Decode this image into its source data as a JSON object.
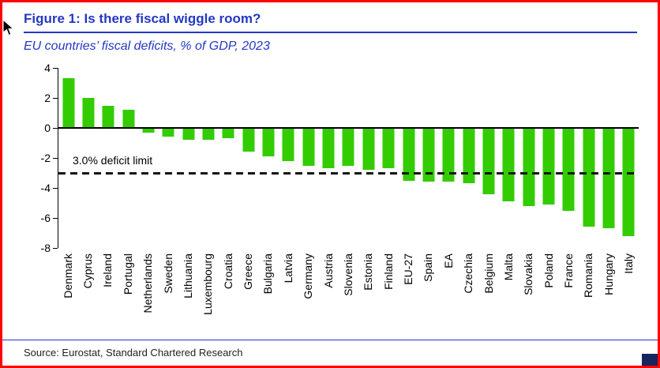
{
  "colors": {
    "bar": "#33CC00",
    "accent_blue": "#2438C3",
    "border_red": "#FF0000",
    "corner_square": "#16255E",
    "axis_black": "#000000"
  },
  "chart_data": {
    "type": "bar",
    "title": "Figure 1: Is there fiscal wiggle room?",
    "subtitle": "EU countries’ fiscal deficits, % of GDP, 2023",
    "source": "Source: Eurostat, Standard Chartered Research",
    "categories": [
      "Denmark",
      "Cyprus",
      "Ireland",
      "Portugal",
      "Netherlands",
      "Sweden",
      "Lithuania",
      "Luxembourg",
      "Croatia",
      "Greece",
      "Bulgaria",
      "Latvia",
      "Germany",
      "Austria",
      "Slovenia",
      "Estonia",
      "Finland",
      "EU-27",
      "Spain",
      "EA",
      "Czechia",
      "Belgium",
      "Malta",
      "Slovakia",
      "Poland",
      "France",
      "Romania",
      "Hungary",
      "Italy"
    ],
    "values": [
      3.3,
      2.0,
      1.5,
      1.2,
      -0.3,
      -0.6,
      -0.8,
      -0.8,
      -0.7,
      -1.6,
      -1.9,
      -2.2,
      -2.5,
      -2.7,
      -2.5,
      -2.8,
      -2.7,
      -3.5,
      -3.6,
      -3.6,
      -3.7,
      -4.4,
      -4.9,
      -5.2,
      -5.1,
      -5.5,
      -6.6,
      -6.7,
      -7.2
    ],
    "ylim": [
      -8,
      4
    ],
    "yticks": [
      4,
      2,
      0,
      -2,
      -4,
      -6,
      -8
    ],
    "grid": "off",
    "legend": "none",
    "reference_line": {
      "value": -3,
      "label": "3.0% deficit limit"
    }
  }
}
